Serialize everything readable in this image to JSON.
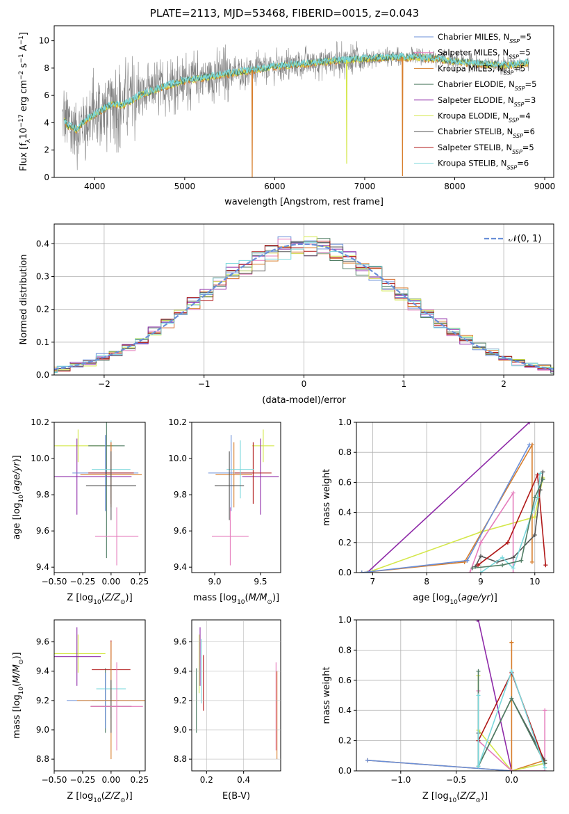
{
  "page_title": "PLATE=2113, MJD=53468, FIBERID=0015, z=0.043",
  "colors": {
    "chabrier_miles": "#6a8fd8",
    "salpeter_miles": "#e57cbc",
    "kroupa_miles": "#d77e2c",
    "chabrier_elodie": "#507d64",
    "salpeter_elodie": "#8e2aa8",
    "kroupa_elodie": "#d4e74a",
    "chabrier_stelib": "#555555",
    "salpeter_stelib": "#b01818",
    "kroupa_stelib": "#7bd8dc",
    "data": "#808080",
    "normal": "#6a8fd8"
  },
  "chart_data": [
    {
      "id": "spectrum",
      "type": "line",
      "xlabel": "wavelength [Angstrom, rest frame]",
      "ylabel_html": "Flux [f_λ10^−17 erg cm^−2 s^−1 A^−1]",
      "ylabel": "Flux [fλ10−17 erg cm−2 s−1 A−1]",
      "xlim": [
        3550,
        9100
      ],
      "ylim": [
        0,
        11.1
      ],
      "xticks": [
        4000,
        5000,
        6000,
        7000,
        8000,
        9000
      ],
      "yticks": [
        0,
        2,
        4,
        6,
        8,
        10
      ],
      "legend_position": "top-right",
      "legend": [
        {
          "key": "chabrier_miles",
          "label": "Chabrier MILES, N",
          "sub": "SSP",
          "tail": "=5"
        },
        {
          "key": "salpeter_miles",
          "label": "Salpeter MILES, N",
          "sub": "SSP",
          "tail": "=5"
        },
        {
          "key": "kroupa_miles",
          "label": "Kroupa MILES, N",
          "sub": "SSP",
          "tail": "=5"
        },
        {
          "key": "chabrier_elodie",
          "label": "Chabrier ELODIE, N",
          "sub": "SSP",
          "tail": "=5"
        },
        {
          "key": "salpeter_elodie",
          "label": "Salpeter ELODIE, N",
          "sub": "SSP",
          "tail": "=3"
        },
        {
          "key": "kroupa_elodie",
          "label": "Kroupa ELODIE, N",
          "sub": "SSP",
          "tail": "=4"
        },
        {
          "key": "chabrier_stelib",
          "label": "Chabrier STELIB, N",
          "sub": "SSP",
          "tail": "=6"
        },
        {
          "key": "salpeter_stelib",
          "label": "Salpeter STELIB, N",
          "sub": "SSP",
          "tail": "=5"
        },
        {
          "key": "kroupa_stelib",
          "label": "Kroupa STELIB, N",
          "sub": "SSP",
          "tail": "=6"
        }
      ],
      "continuum_model": {
        "x": [
          3650,
          3700,
          3800,
          3900,
          4000,
          4100,
          4200,
          4300,
          4400,
          4500,
          4700,
          5000,
          5300,
          5500,
          5800,
          6000,
          6300,
          6600,
          7000,
          7300,
          7500,
          7800,
          8000,
          8300,
          8600,
          8800
        ],
        "y": [
          4.3,
          3.8,
          3.5,
          4.2,
          4.6,
          5.0,
          5.4,
          5.3,
          5.6,
          6.0,
          6.5,
          7.1,
          7.4,
          7.6,
          7.9,
          8.1,
          8.3,
          8.5,
          8.7,
          8.8,
          8.8,
          8.7,
          8.5,
          8.3,
          8.2,
          8.4
        ]
      },
      "dips": [
        {
          "x": 5750,
          "y": 0.0
        },
        {
          "x": 6800,
          "y": 1.0
        },
        {
          "x": 7420,
          "y": 0.1
        }
      ]
    },
    {
      "id": "residual_hist",
      "type": "line",
      "xlabel": "(data-model)/error",
      "ylabel": "Normed distribution",
      "xlim": [
        -2.5,
        2.5
      ],
      "ylim": [
        0,
        0.46
      ],
      "xticks": [
        -2,
        -1,
        0,
        1,
        2
      ],
      "xtick_labels": [
        "−2",
        "−1",
        "0",
        "1",
        "2"
      ],
      "yticks": [
        0,
        0.1,
        0.2,
        0.3,
        0.4
      ],
      "ytick_labels": [
        "0.0",
        "0.1",
        "0.2",
        "0.3",
        "0.4"
      ],
      "legend_position": "top-right",
      "legend_label": "𝒩(0, 1)",
      "bins": 40
    },
    {
      "id": "age_vs_Z",
      "type": "scatter",
      "xlabel": "Z [log10(Z/Z⊙)]",
      "ylabel": "age [log10(age/yr)]",
      "xlim": [
        -0.5,
        0.3
      ],
      "ylim": [
        9.37,
        10.2
      ],
      "xticks": [
        -0.5,
        -0.25,
        0.0,
        0.25
      ],
      "xtick_labels": [
        "−0.50",
        "−0.25",
        "0.00",
        "0.25"
      ],
      "yticks": [
        9.4,
        9.6,
        9.8,
        10.0,
        10.2
      ],
      "ytick_labels": [
        "9.4",
        "9.6",
        "9.8",
        "10.0",
        "10.2"
      ],
      "points": [
        {
          "s": "kroupa_elodie",
          "x": -0.29,
          "xerr": 0.31,
          "y": 10.07,
          "yerr": 0.09
        },
        {
          "s": "chabrier_elodie",
          "x": -0.04,
          "xerr": 0.16,
          "y": 10.07,
          "yerr": 0.62
        },
        {
          "s": "salpeter_elodie",
          "x": -0.3,
          "xerr": 0.48,
          "y": 9.9,
          "yerr": 0.21
        },
        {
          "s": "chabrier_miles",
          "x": -0.05,
          "xerr": 0.29,
          "y": 9.92,
          "yerr": 0.21
        },
        {
          "s": "kroupa_stelib",
          "x": 0.0,
          "xerr": 0.17,
          "y": 9.94,
          "yerr": 0.16
        },
        {
          "s": "salpeter_stelib",
          "x": 0.0,
          "xerr": 0.2,
          "y": 9.92,
          "yerr": 0.17
        },
        {
          "s": "kroupa_miles",
          "x": 0.0,
          "xerr": 0.27,
          "y": 9.91,
          "yerr": 0.18
        },
        {
          "s": "chabrier_stelib",
          "x": 0.0,
          "xerr": 0.22,
          "y": 9.85,
          "yerr": 0.19
        },
        {
          "s": "salpeter_miles",
          "x": 0.05,
          "xerr": 0.19,
          "y": 9.57,
          "yerr": 0.16
        }
      ]
    },
    {
      "id": "age_vs_mass",
      "type": "scatter",
      "xlabel": "mass [log10(M/M⊙)]",
      "ylabel": "",
      "xlim": [
        8.75,
        9.72
      ],
      "ylim": [
        9.37,
        10.2
      ],
      "xticks": [
        9.0,
        9.5
      ],
      "xtick_labels": [
        "9.0",
        "9.5"
      ],
      "yticks": [
        9.4,
        9.6,
        9.8,
        10.0,
        10.2
      ],
      "ytick_labels": [
        "9.4",
        "9.6",
        "9.8",
        "10.0",
        "10.2"
      ],
      "points": [
        {
          "s": "kroupa_elodie",
          "x": 9.53,
          "xerr": 0.12,
          "y": 10.07,
          "yerr": 0.09
        },
        {
          "s": "salpeter_elodie",
          "x": 9.5,
          "xerr": 0.2,
          "y": 9.9,
          "yerr": 0.21
        },
        {
          "s": "chabrier_miles",
          "x": 9.18,
          "xerr": 0.25,
          "y": 9.92,
          "yerr": 0.21
        },
        {
          "s": "kroupa_miles",
          "x": 9.21,
          "xerr": 0.2,
          "y": 9.91,
          "yerr": 0.18
        },
        {
          "s": "salpeter_stelib",
          "x": 9.42,
          "xerr": 0.2,
          "y": 9.92,
          "yerr": 0.17
        },
        {
          "s": "kroupa_stelib",
          "x": 9.28,
          "xerr": 0.15,
          "y": 9.94,
          "yerr": 0.16
        },
        {
          "s": "chabrier_stelib",
          "x": 9.16,
          "xerr": 0.16,
          "y": 9.85,
          "yerr": 0.19
        },
        {
          "s": "salpeter_miles",
          "x": 9.17,
          "xerr": 0.2,
          "y": 9.57,
          "yerr": 0.16
        }
      ]
    },
    {
      "id": "mass_weight_vs_age",
      "type": "line",
      "xlabel": "age [log10(age/yr)]",
      "ylabel": "mass weight",
      "xlim": [
        6.7,
        10.35
      ],
      "ylim": [
        0,
        1
      ],
      "xticks": [
        7,
        8,
        9,
        10
      ],
      "yticks": [
        0,
        0.2,
        0.4,
        0.6,
        0.8,
        1.0
      ],
      "ytick_labels": [
        "0.0",
        "0.2",
        "0.4",
        "0.6",
        "0.8",
        "1.0"
      ],
      "series": [
        {
          "s": "salpeter_elodie",
          "x": [
            6.9,
            9.9
          ],
          "y": [
            0.0,
            1.0
          ]
        },
        {
          "s": "kroupa_elodie",
          "x": [
            6.9,
            9.0,
            10.0,
            10.15
          ],
          "y": [
            0.0,
            0.27,
            0.37,
            0.63
          ]
        },
        {
          "s": "kroupa_miles",
          "x": [
            6.8,
            8.7,
            9.95,
            9.95
          ],
          "y": [
            0.0,
            0.07,
            0.85,
            0.07
          ]
        },
        {
          "s": "chabrier_miles",
          "x": [
            6.8,
            8.75,
            9.9
          ],
          "y": [
            0.0,
            0.08,
            0.85
          ]
        },
        {
          "s": "salpeter_miles",
          "x": [
            8.8,
            9.0,
            9.6,
            9.6
          ],
          "y": [
            0.0,
            0.2,
            0.53,
            0.0
          ]
        },
        {
          "s": "chabrier_stelib",
          "x": [
            8.9,
            9.0,
            9.3,
            9.6,
            10.0,
            10.1,
            10.15
          ],
          "y": [
            0.04,
            0.11,
            0.07,
            0.1,
            0.25,
            0.55,
            0.67
          ]
        },
        {
          "s": "salpeter_stelib",
          "x": [
            8.95,
            9.5,
            10.05,
            10.2
          ],
          "y": [
            0.05,
            0.2,
            0.65,
            0.05
          ]
        },
        {
          "s": "kroupa_stelib",
          "x": [
            9.0,
            9.4,
            9.6,
            10.05,
            10.1
          ],
          "y": [
            0.0,
            0.1,
            0.03,
            0.5,
            0.66
          ]
        },
        {
          "s": "chabrier_elodie",
          "x": [
            8.85,
            9.4,
            9.75,
            10.0,
            10.15
          ],
          "y": [
            0.03,
            0.05,
            0.08,
            0.5,
            0.62
          ]
        }
      ]
    },
    {
      "id": "mass_vs_Z",
      "type": "scatter",
      "xlabel": "Z [log10(Z/Z⊙)]",
      "ylabel": "mass [log10(M/M⊙)]",
      "xlim": [
        -0.5,
        0.3
      ],
      "ylim": [
        8.72,
        9.75
      ],
      "xticks": [
        -0.5,
        -0.25,
        0.0,
        0.25
      ],
      "xtick_labels": [
        "−0.50",
        "−0.25",
        "0.00",
        "0.25"
      ],
      "yticks": [
        8.8,
        9.0,
        9.2,
        9.4,
        9.6
      ],
      "ytick_labels": [
        "8.8",
        "9.0",
        "9.2",
        "9.4",
        "9.6"
      ],
      "points": [
        {
          "s": "kroupa_elodie",
          "x": -0.29,
          "xerr": 0.24,
          "y": 9.52,
          "yerr": 0.13
        },
        {
          "s": "salpeter_elodie",
          "x": -0.3,
          "xerr": 0.21,
          "y": 9.5,
          "yerr": 0.2
        },
        {
          "s": "chabrier_elodie",
          "x": -0.05,
          "xerr": 0.12,
          "y": 9.2,
          "yerr": 0.22
        },
        {
          "s": "salpeter_stelib",
          "x": 0.0,
          "xerr": 0.17,
          "y": 9.41,
          "yerr": 0.2
        },
        {
          "s": "kroupa_stelib",
          "x": 0.0,
          "xerr": 0.13,
          "y": 9.28,
          "yerr": 0.2
        },
        {
          "s": "chabrier_miles",
          "x": -0.05,
          "xerr": 0.34,
          "y": 9.2,
          "yerr": 0.19
        },
        {
          "s": "kroupa_miles",
          "x": 0.0,
          "xerr": 0.3,
          "y": 9.2,
          "yerr": 0.4
        },
        {
          "s": "chabrier_stelib",
          "x": 0.0,
          "xerr": 0.18,
          "y": 9.16,
          "yerr": 0.18
        },
        {
          "s": "salpeter_miles",
          "x": 0.05,
          "xerr": 0.23,
          "y": 9.16,
          "yerr": 0.3
        }
      ]
    },
    {
      "id": "mass_vs_EBV",
      "type": "scatter",
      "xlabel": "E(B-V)",
      "ylabel": "",
      "xlim": [
        0.12,
        0.6
      ],
      "ylim": [
        8.72,
        9.75
      ],
      "xticks": [
        0.2,
        0.4
      ],
      "xtick_labels": [
        "0.2",
        "0.4"
      ],
      "yticks": [
        8.8,
        9.0,
        9.2,
        9.4,
        9.6
      ],
      "ytick_labels": [
        "8.8",
        "9.0",
        "9.2",
        "9.4",
        "9.6"
      ],
      "points": [
        {
          "s": "chabrier_elodie",
          "x": 0.145,
          "xerr": 0,
          "y": 9.2,
          "yerr": 0.22
        },
        {
          "s": "kroupa_elodie",
          "x": 0.16,
          "xerr": 0,
          "y": 9.45,
          "yerr": 0.2
        },
        {
          "s": "salpeter_elodie",
          "x": 0.165,
          "xerr": 0,
          "y": 9.5,
          "yerr": 0.2
        },
        {
          "s": "kroupa_stelib",
          "x": 0.172,
          "xerr": 0,
          "y": 9.4,
          "yerr": 0.22
        },
        {
          "s": "salpeter_stelib",
          "x": 0.183,
          "xerr": 0,
          "y": 9.32,
          "yerr": 0.19
        },
        {
          "s": "salpeter_miles",
          "x": 0.575,
          "xerr": 0,
          "y": 9.16,
          "yerr": 0.3
        },
        {
          "s": "kroupa_miles",
          "x": 0.58,
          "xerr": 0,
          "y": 9.1,
          "yerr": 0.3
        }
      ]
    },
    {
      "id": "mass_weight_vs_Z",
      "type": "line",
      "xlabel": "Z [log10(Z/Z⊙)]",
      "ylabel": "mass weight",
      "xlim": [
        -1.4,
        0.38
      ],
      "ylim": [
        0,
        1
      ],
      "xticks": [
        -1.0,
        -0.5,
        0.0
      ],
      "xtick_labels": [
        "−1.0",
        "−0.5",
        "0.0"
      ],
      "yticks": [
        0,
        0.2,
        0.4,
        0.6,
        0.8,
        1.0
      ],
      "ytick_labels": [
        "0.0",
        "0.2",
        "0.4",
        "0.6",
        "0.8",
        "1.0"
      ],
      "series": [
        {
          "s": "salpeter_elodie",
          "x": [
            -0.31,
            -0.3,
            0.0
          ],
          "y": [
            1.0,
            1.0,
            0.0
          ]
        },
        {
          "s": "kroupa_miles",
          "x": [
            -1.3,
            0.0,
            0.0,
            0.0,
            0.3
          ],
          "y": [
            0.07,
            0.0,
            0.85,
            0.0,
            0.07
          ]
        },
        {
          "s": "chabrier_miles",
          "x": [
            -1.3,
            0.0,
            0.3
          ],
          "y": [
            0.07,
            0.0,
            0.05
          ]
        },
        {
          "s": "kroupa_elodie",
          "x": [
            -0.3,
            -0.3,
            0.0,
            0.3
          ],
          "y": [
            0.63,
            0.27,
            0.0,
            0.05
          ]
        },
        {
          "s": "salpeter_miles",
          "x": [
            -0.3,
            -0.3,
            0.0,
            0.3,
            0.3
          ],
          "y": [
            0.53,
            0.2,
            0.0,
            0.0,
            0.4
          ]
        },
        {
          "s": "chabrier_stelib",
          "x": [
            -0.3,
            -0.3,
            0.0,
            0.3
          ],
          "y": [
            0.25,
            0.03,
            0.48,
            0.07
          ]
        },
        {
          "s": "salpeter_stelib",
          "x": [
            -0.3,
            0.0,
            0.3
          ],
          "y": [
            0.2,
            0.65,
            0.05
          ]
        },
        {
          "s": "chabrier_elodie",
          "x": [
            -0.3,
            -0.3,
            0.0,
            0.3
          ],
          "y": [
            0.66,
            0.03,
            0.48,
            0.05
          ]
        },
        {
          "s": "kroupa_stelib",
          "x": [
            -0.3,
            -0.3,
            0.0,
            0.3
          ],
          "y": [
            0.5,
            0.03,
            0.66,
            0.02
          ]
        }
      ]
    }
  ]
}
